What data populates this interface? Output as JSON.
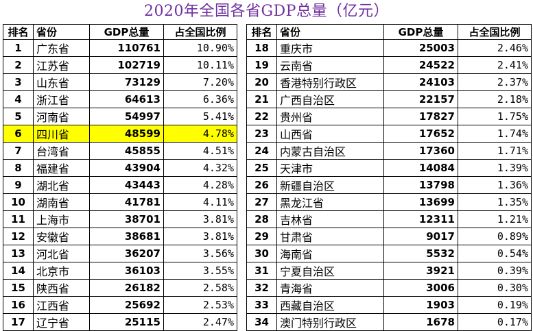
{
  "title": "2020年全国各省GDP总量（亿元）",
  "highlight_color": "#ffff00",
  "title_color": "#7030a0",
  "headers": {
    "rank": "排名",
    "province": "省份",
    "gdp": "GDP总量",
    "share": "占全国比例"
  },
  "left_rows": [
    {
      "rank": "1",
      "province": "广东省",
      "gdp": "110761",
      "share": "10.90%"
    },
    {
      "rank": "2",
      "province": "江苏省",
      "gdp": "102719",
      "share": "10.11%"
    },
    {
      "rank": "3",
      "province": "山东省",
      "gdp": "73129",
      "share": "7.20%"
    },
    {
      "rank": "4",
      "province": "浙江省",
      "gdp": "64613",
      "share": "6.36%"
    },
    {
      "rank": "5",
      "province": "河南省",
      "gdp": "54997",
      "share": "5.41%"
    },
    {
      "rank": "6",
      "province": "四川省",
      "gdp": "48599",
      "share": "4.78%",
      "highlighted": true
    },
    {
      "rank": "7",
      "province": "台湾省",
      "gdp": "45855",
      "share": "4.51%"
    },
    {
      "rank": "8",
      "province": "福建省",
      "gdp": "43904",
      "share": "4.32%"
    },
    {
      "rank": "9",
      "province": "湖北省",
      "gdp": "43443",
      "share": "4.28%"
    },
    {
      "rank": "10",
      "province": "湖南省",
      "gdp": "41781",
      "share": "4.11%"
    },
    {
      "rank": "11",
      "province": "上海市",
      "gdp": "38701",
      "share": "3.81%"
    },
    {
      "rank": "12",
      "province": "安徽省",
      "gdp": "38681",
      "share": "3.81%"
    },
    {
      "rank": "13",
      "province": "河北省",
      "gdp": "36207",
      "share": "3.56%"
    },
    {
      "rank": "14",
      "province": "北京市",
      "gdp": "36103",
      "share": "3.55%"
    },
    {
      "rank": "15",
      "province": "陕西省",
      "gdp": "26182",
      "share": "2.58%"
    },
    {
      "rank": "16",
      "province": "江西省",
      "gdp": "25692",
      "share": "2.53%"
    },
    {
      "rank": "17",
      "province": "辽宁省",
      "gdp": "25115",
      "share": "2.47%"
    }
  ],
  "right_rows": [
    {
      "rank": "18",
      "province": "重庆市",
      "gdp": "25003",
      "share": "2.46%"
    },
    {
      "rank": "19",
      "province": "云南省",
      "gdp": "24522",
      "share": "2.41%"
    },
    {
      "rank": "20",
      "province": "香港特别行政区",
      "gdp": "24103",
      "share": "2.37%"
    },
    {
      "rank": "21",
      "province": "广西自治区",
      "gdp": "22157",
      "share": "2.18%"
    },
    {
      "rank": "22",
      "province": "贵州省",
      "gdp": "17827",
      "share": "1.75%"
    },
    {
      "rank": "23",
      "province": "山西省",
      "gdp": "17652",
      "share": "1.74%"
    },
    {
      "rank": "24",
      "province": "内蒙古自治区",
      "gdp": "17360",
      "share": "1.71%"
    },
    {
      "rank": "25",
      "province": "天津市",
      "gdp": "14084",
      "share": "1.39%"
    },
    {
      "rank": "26",
      "province": "新疆自治区",
      "gdp": "13798",
      "share": "1.36%"
    },
    {
      "rank": "27",
      "province": "黑龙江省",
      "gdp": "13699",
      "share": "1.35%"
    },
    {
      "rank": "28",
      "province": "吉林省",
      "gdp": "12311",
      "share": "1.21%"
    },
    {
      "rank": "29",
      "province": "甘肃省",
      "gdp": "9017",
      "share": "0.89%"
    },
    {
      "rank": "30",
      "province": "海南省",
      "gdp": "5532",
      "share": "0.54%"
    },
    {
      "rank": "31",
      "province": "宁夏自治区",
      "gdp": "3921",
      "share": "0.39%"
    },
    {
      "rank": "32",
      "province": "青海省",
      "gdp": "3006",
      "share": "0.30%"
    },
    {
      "rank": "33",
      "province": "西藏自治区",
      "gdp": "1903",
      "share": "0.19%"
    },
    {
      "rank": "34",
      "province": "澳门特别行政区",
      "gdp": "1678",
      "share": "0.17%"
    }
  ]
}
